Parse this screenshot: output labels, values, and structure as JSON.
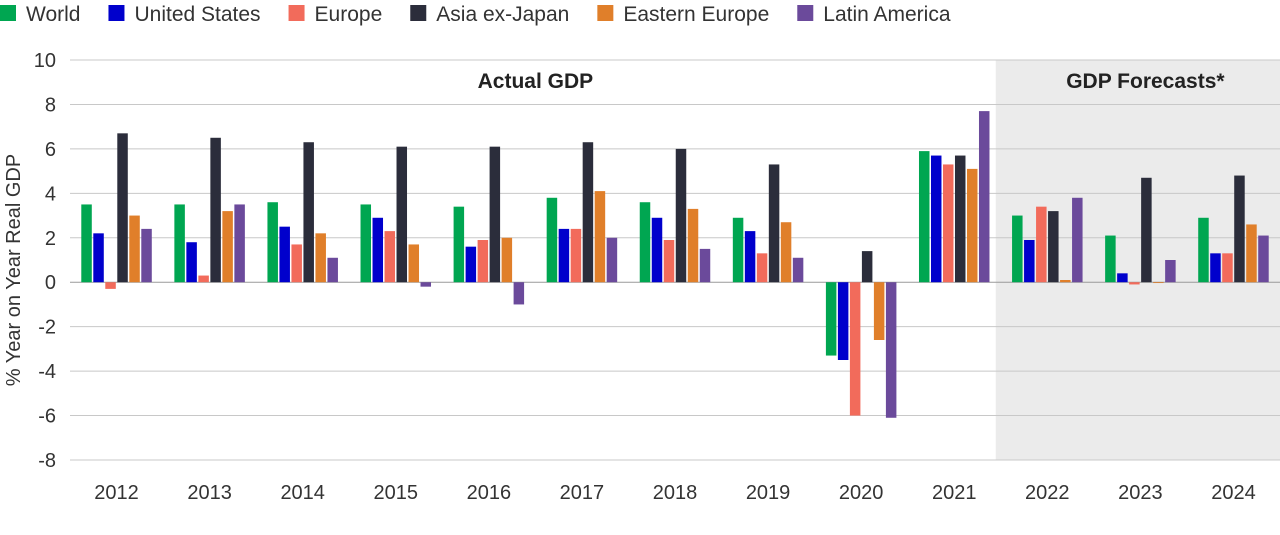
{
  "chart_data": {
    "type": "bar",
    "categories": [
      "2012",
      "2013",
      "2014",
      "2015",
      "2016",
      "2017",
      "2018",
      "2019",
      "2020",
      "2021",
      "2022",
      "2023",
      "2024"
    ],
    "series": [
      {
        "name": "World",
        "color": "#00a651",
        "values": [
          3.5,
          3.5,
          3.6,
          3.5,
          3.4,
          3.8,
          3.6,
          2.9,
          -3.3,
          5.9,
          3.0,
          2.1,
          2.9
        ]
      },
      {
        "name": "United States",
        "color": "#0000cc",
        "values": [
          2.2,
          1.8,
          2.5,
          2.9,
          1.6,
          2.4,
          2.9,
          2.3,
          -3.5,
          5.7,
          1.9,
          0.4,
          1.3
        ]
      },
      {
        "name": "Europe",
        "color": "#f26b5b",
        "values": [
          -0.3,
          0.3,
          1.7,
          2.3,
          1.9,
          2.4,
          1.9,
          1.3,
          -6.0,
          5.3,
          3.4,
          -0.1,
          1.3
        ]
      },
      {
        "name": "Asia ex-Japan",
        "color": "#2b2d3b",
        "values": [
          6.7,
          6.5,
          6.3,
          6.1,
          6.1,
          6.3,
          6.0,
          5.3,
          1.4,
          5.7,
          3.2,
          4.7,
          4.8
        ]
      },
      {
        "name": "Eastern Europe",
        "color": "#e07f2a",
        "values": [
          3.0,
          3.2,
          2.2,
          1.7,
          2.0,
          4.1,
          3.3,
          2.7,
          -2.6,
          5.1,
          0.1,
          0.0,
          2.6
        ]
      },
      {
        "name": "Latin America",
        "color": "#6b4a9b",
        "values": [
          2.4,
          3.5,
          1.1,
          -0.2,
          -1.0,
          2.0,
          1.5,
          1.1,
          -6.1,
          7.7,
          3.8,
          1.0,
          2.1
        ]
      }
    ],
    "ylabel": "% Year on Year Real GDP",
    "xlabel": "",
    "ylim": [
      -8,
      10
    ],
    "yticks": [
      10,
      8,
      6,
      4,
      2,
      0,
      -2,
      -4,
      -6,
      -8
    ],
    "grid": true,
    "legend_position": "top",
    "annotations": [
      {
        "text": "Actual GDP",
        "span": [
          "2012",
          "2021"
        ]
      },
      {
        "text": "GDP Forecasts*",
        "span": [
          "2022",
          "2024"
        ],
        "shaded": true,
        "shade_color": "#ebebeb"
      }
    ]
  }
}
